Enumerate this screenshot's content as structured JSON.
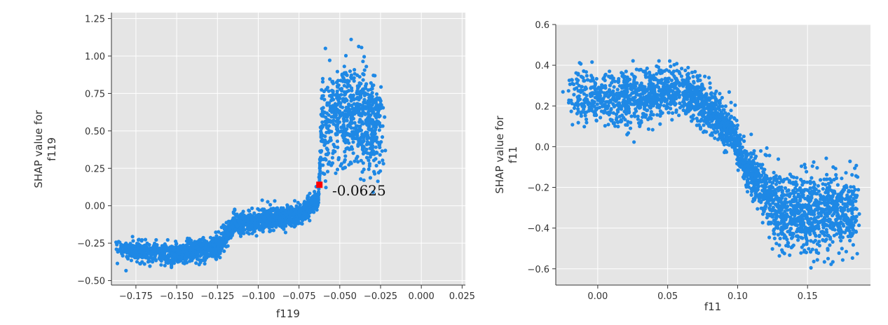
{
  "chart_data": [
    {
      "type": "scatter",
      "xlabel": "f119",
      "ylabel": "SHAP value for\nf119",
      "xlim": [
        -0.19,
        0.027
      ],
      "ylim": [
        -0.53,
        1.29
      ],
      "xticks": [
        -0.175,
        -0.15,
        -0.125,
        -0.1,
        -0.075,
        -0.05,
        -0.025,
        0.0,
        0.025
      ],
      "xtick_labels": [
        "−0.175",
        "−0.150",
        "−0.125",
        "−0.100",
        "−0.075",
        "−0.050",
        "−0.025",
        "0.000",
        "0.025"
      ],
      "yticks": [
        -0.5,
        -0.25,
        0.0,
        0.25,
        0.5,
        0.75,
        1.0,
        1.25
      ],
      "ytick_labels": [
        "−0.50",
        "−0.25",
        "0.00",
        "0.25",
        "0.50",
        "0.75",
        "1.00",
        "1.25"
      ],
      "grid": true,
      "point_color": "#1e88e5",
      "approx_point_count": 2600,
      "trend": [
        [
          -0.185,
          -0.3
        ],
        [
          -0.15,
          -0.32
        ],
        [
          -0.125,
          -0.28
        ],
        [
          -0.115,
          -0.12
        ],
        [
          -0.1,
          -0.1
        ],
        [
          -0.075,
          -0.06
        ],
        [
          -0.063,
          0.05
        ],
        [
          -0.061,
          0.55
        ],
        [
          -0.05,
          0.6
        ],
        [
          -0.035,
          0.58
        ],
        [
          -0.025,
          0.55
        ]
      ],
      "highlight": {
        "x": -0.0625,
        "y": 0.14,
        "color": "#ff0000",
        "label": "-0.0625"
      }
    },
    {
      "type": "scatter",
      "xlabel": "f11",
      "ylabel": "SHAP value for\nf11",
      "xlim": [
        -0.03,
        0.195
      ],
      "ylim": [
        -0.68,
        0.6
      ],
      "xticks": [
        0.0,
        0.05,
        0.1,
        0.15
      ],
      "xtick_labels": [
        "0.00",
        "0.05",
        "0.10",
        "0.15"
      ],
      "yticks": [
        -0.6,
        -0.4,
        -0.2,
        0.0,
        0.2,
        0.4,
        0.6
      ],
      "ytick_labels": [
        "−0.6",
        "−0.4",
        "−0.2",
        "0.0",
        "0.2",
        "0.4",
        "0.6"
      ],
      "grid": true,
      "point_color": "#1e88e5",
      "approx_point_count": 2600,
      "trend": [
        [
          -0.02,
          0.25
        ],
        [
          0.02,
          0.23
        ],
        [
          0.04,
          0.26
        ],
        [
          0.06,
          0.28
        ],
        [
          0.08,
          0.18
        ],
        [
          0.095,
          0.08
        ],
        [
          0.105,
          -0.08
        ],
        [
          0.115,
          -0.2
        ],
        [
          0.13,
          -0.32
        ],
        [
          0.15,
          -0.33
        ],
        [
          0.185,
          -0.3
        ]
      ]
    }
  ]
}
